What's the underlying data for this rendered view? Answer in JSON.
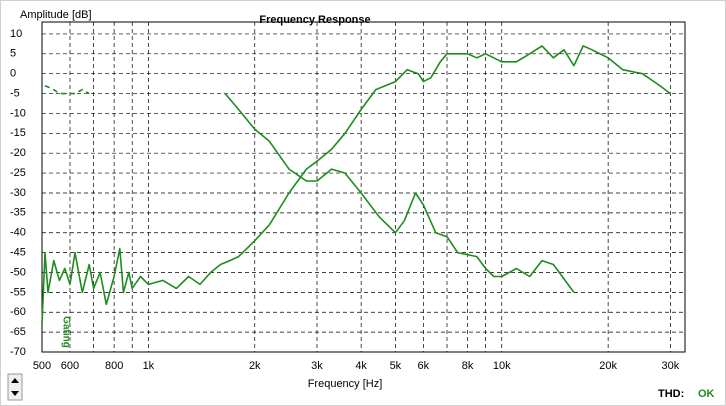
{
  "chart_data": {
    "type": "line",
    "title": "Frequency Response",
    "ylabel": "Amplitude [dB]",
    "xlabel": "Frequency [Hz]",
    "annotations": [
      "Gating"
    ],
    "status": {
      "label": "THD:",
      "value": "OK"
    },
    "log_x": true,
    "grid": true,
    "color": "#1e8c1e",
    "xlim": [
      500,
      33000
    ],
    "ylim": [
      -70,
      13
    ],
    "xticks": [
      500,
      600,
      800,
      {
        "value": 1000,
        "label": "1k"
      },
      {
        "value": 2000,
        "label": "2k"
      },
      {
        "value": 3000,
        "label": "3k"
      },
      {
        "value": 4000,
        "label": "4k"
      },
      {
        "value": 5000,
        "label": "5k"
      },
      {
        "value": 6000,
        "label": "6k"
      },
      {
        "value": 8000,
        "label": "8k"
      },
      {
        "value": 10000,
        "label": "10k"
      },
      {
        "value": 20000,
        "label": "20k"
      },
      {
        "value": 30000,
        "label": "30k"
      }
    ],
    "xgrid": [
      700,
      900,
      7000,
      9000
    ],
    "yticks": [
      10,
      5,
      0,
      -5,
      -10,
      -15,
      -20,
      -25,
      -30,
      -35,
      -40,
      -45,
      -50,
      -55,
      -60,
      -65,
      -70
    ],
    "series": [
      {
        "color": "#1e8c1e",
        "dashed": false,
        "x": [
          500,
          510,
          520,
          540,
          560,
          580,
          600,
          620,
          650,
          680,
          700,
          730,
          760,
          800,
          830,
          850,
          880,
          900,
          950,
          1000,
          1100,
          1200,
          1300,
          1400,
          1500,
          1600,
          1700,
          1800,
          2000,
          2200,
          2500,
          2800,
          3000,
          3300,
          3600,
          4000,
          4400,
          5000,
          5400,
          5800,
          6000,
          6300,
          6700,
          7000,
          8000,
          8500,
          9000,
          10000,
          11000,
          12000,
          13000,
          14000,
          15000,
          16000,
          17000,
          18000,
          20000,
          22000,
          25000,
          28000,
          30000
        ],
        "values": [
          -63,
          -45,
          -55,
          -47,
          -52,
          -49,
          -53,
          -45,
          -55,
          -48,
          -54,
          -50,
          -58,
          -51,
          -44,
          -55,
          -50,
          -54,
          -51,
          -53,
          -52,
          -54,
          -51,
          -53,
          -50,
          -48,
          -47,
          -46,
          -42,
          -38,
          -30,
          -24,
          -22,
          -19,
          -15,
          -9,
          -4,
          -2,
          1,
          0,
          -2,
          -1,
          3,
          5,
          5,
          4,
          5,
          3,
          3,
          5,
          7,
          4,
          6,
          2,
          7,
          6,
          4,
          1,
          0,
          -3,
          -5
        ]
      },
      {
        "color": "#1e8c1e",
        "dashed": false,
        "x": [
          1650,
          1800,
          2000,
          2200,
          2500,
          2800,
          3000,
          3300,
          3600,
          4000,
          4500,
          5000,
          5300,
          5700,
          6000,
          6500,
          7000,
          7500,
          8500,
          9000,
          9500,
          10000,
          11000,
          12000,
          13000,
          14000,
          16000
        ],
        "values": [
          -5,
          -9,
          -14,
          -17,
          -24,
          -27,
          -27,
          -24,
          -25,
          -30,
          -36,
          -40,
          -37,
          -30,
          -33,
          -40,
          -41,
          -45,
          -46,
          -49,
          -51,
          -51,
          -49,
          -51,
          -47,
          -48,
          -55
        ]
      },
      {
        "color": "#1e8c1e",
        "dashed": true,
        "x": [
          510,
          540,
          560,
          620,
          650,
          680
        ],
        "values": [
          -3,
          -4,
          -5,
          -5,
          -4,
          -5
        ]
      }
    ]
  }
}
